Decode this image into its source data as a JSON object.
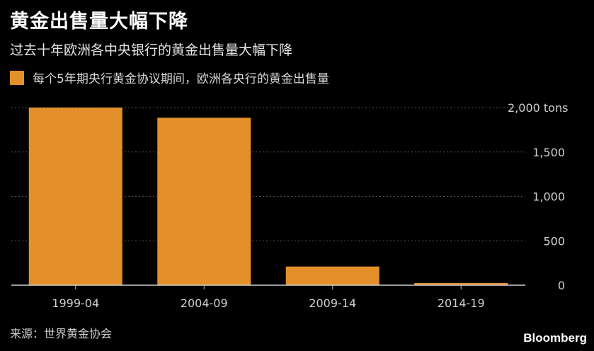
{
  "title": "黄金出售量大幅下降",
  "subtitle": "过去十年欧洲各中央银行的黄金出售量大幅下降",
  "legend": {
    "label": "每个5年期央行黄金协议期间，欧洲各央行的黄金出售量",
    "color": "#E3902A"
  },
  "source": "来源：世界黄金协会",
  "brand": "Bloomberg",
  "chart_data": {
    "type": "bar",
    "categories": [
      "1999-04",
      "2004-09",
      "2009-14",
      "2014-19"
    ],
    "series": [
      {
        "name": "每个5年期央行黄金协议期间，欧洲各央行的黄金出售量",
        "values": [
          2000,
          1885,
          210,
          25
        ]
      }
    ],
    "ylim": [
      0,
      2000
    ],
    "yticks": [
      0,
      500,
      1000,
      1500,
      2000
    ],
    "ytick_labels": [
      "0",
      "500",
      "1,000",
      "1,500",
      "2,000 tons"
    ],
    "grid": true,
    "bar_color": "#E3902A",
    "gridline_color": "#555555"
  }
}
